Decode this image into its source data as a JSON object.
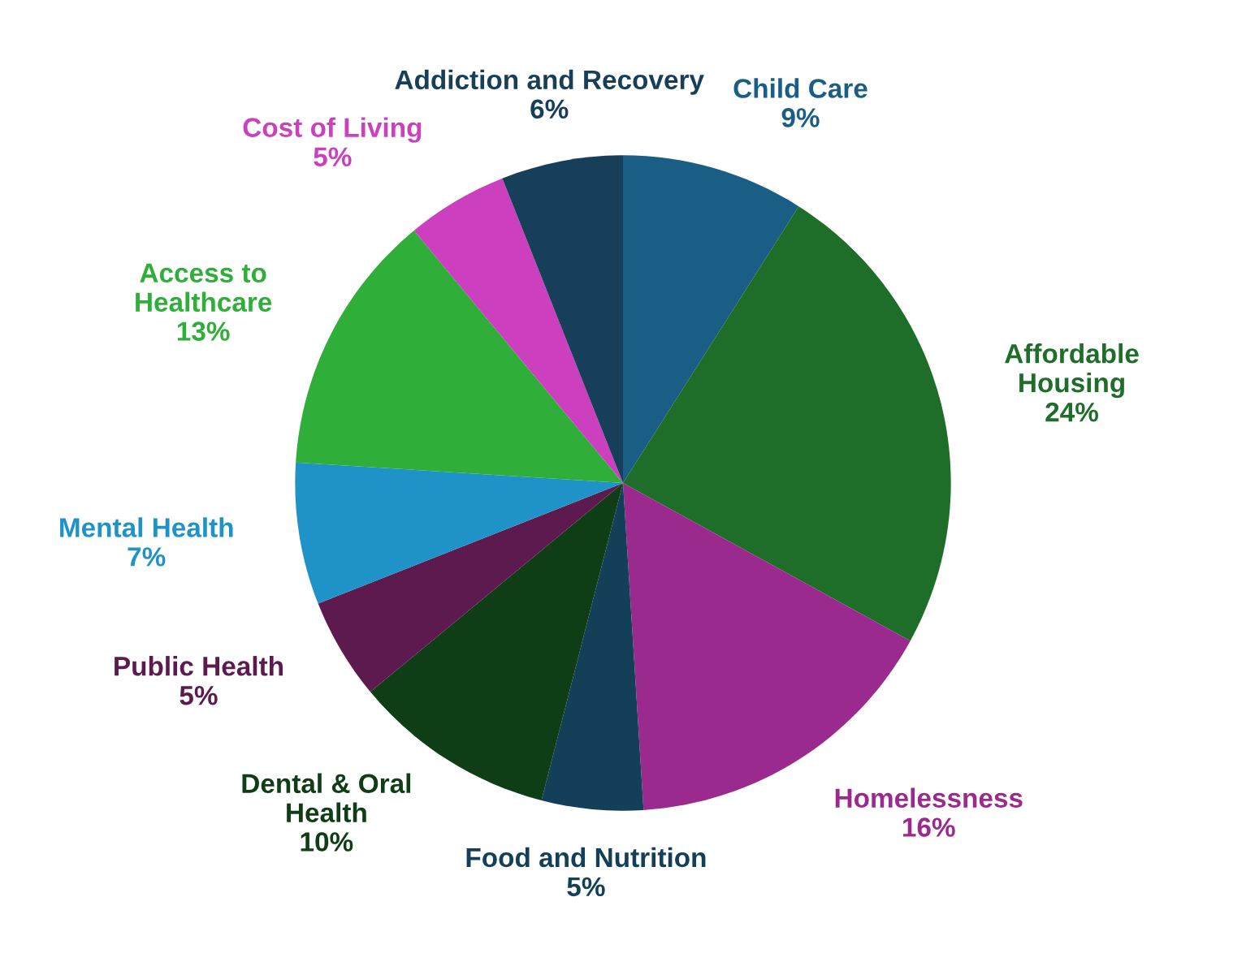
{
  "chart_data": {
    "type": "pie",
    "categories": [
      "Child Care",
      "Affordable\nHousing",
      "Homelessness",
      "Food and Nutrition",
      "Dental & Oral\nHealth",
      "Public Health",
      "Mental Health",
      "Access to\nHealthcare",
      "Cost of Living",
      "Addiction and Recovery"
    ],
    "values": [
      9,
      24,
      16,
      5,
      10,
      5,
      7,
      13,
      5,
      6
    ],
    "value_labels": [
      "9%",
      "24%",
      "16%",
      "5%",
      "10%",
      "5%",
      "7%",
      "13%",
      "5%",
      "6%"
    ],
    "colors": [
      "#1a5e85",
      "#1e6e2a",
      "#9b2a8e",
      "#133f58",
      "#0f3d16",
      "#5c1a4e",
      "#1f92c8",
      "#2fae3a",
      "#cc3fbf",
      "#173f5a"
    ]
  }
}
